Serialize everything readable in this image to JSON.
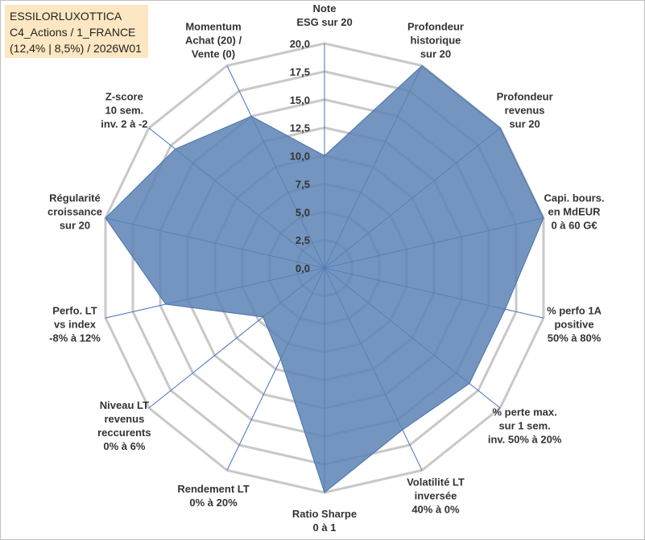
{
  "chart_data": {
    "type": "radar",
    "title": [
      "ESSILORLUXOTTICA",
      "C4_Actions / 1_FRANCE",
      "(12,4% | 8,5%) / 2026W01"
    ],
    "categories": [
      [
        "Note",
        "ESG sur 20"
      ],
      [
        "Profondeur",
        "historique",
        "sur 20"
      ],
      [
        "Profondeur",
        "revenus",
        "sur 20"
      ],
      [
        "Capi. bours.",
        "en MdEUR",
        "0 à 60 G€"
      ],
      [
        "% perfo 1A",
        "positive",
        "50% à 80%"
      ],
      [
        "% perte max.",
        "sur 1 sem.",
        "inv. 50% à 20%"
      ],
      [
        "Volatilité LT",
        "inversée",
        "40% à 0%"
      ],
      [
        "Ratio Sharpe",
        "0 à 1"
      ],
      [
        "Rendement LT",
        "0% à 20%"
      ],
      [
        "Niveau LT",
        "revenus",
        "reccurents",
        "0% à 6%"
      ],
      [
        "Perfo. LT",
        "vs index",
        "-8% à 12%"
      ],
      [
        "Régularité",
        "croissance",
        "sur 20"
      ],
      [
        "Z-score",
        "10 sem.",
        "inv. 2 à -2"
      ],
      [
        "Momentum",
        "Achat (20) /",
        "Vente (0)"
      ]
    ],
    "series": [
      {
        "color": "#5b82b5",
        "values": [
          10,
          20,
          20,
          20,
          16.5,
          16.5,
          16,
          20,
          9,
          7,
          14.5,
          20,
          17,
          15
        ]
      }
    ],
    "ylim": [
      0,
      20
    ],
    "yticks": [
      {
        "value": 0,
        "label": "0,0"
      },
      {
        "value": 2.5,
        "label": "2,5"
      },
      {
        "value": 5,
        "label": "5,0"
      },
      {
        "value": 7.5,
        "label": "7,5"
      },
      {
        "value": 10,
        "label": "10,0"
      },
      {
        "value": 12.5,
        "label": "12,5"
      },
      {
        "value": 15,
        "label": "15,0"
      },
      {
        "value": 17.5,
        "label": "17,5"
      },
      {
        "value": 20,
        "label": "20,0"
      }
    ],
    "grid": true
  }
}
